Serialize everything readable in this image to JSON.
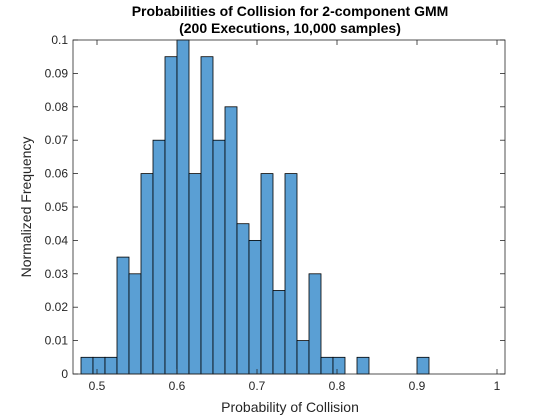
{
  "colors": {
    "bar_fill": "#5a9fd4",
    "bar_edge": "#000000",
    "axis": "#262626",
    "background": "#ffffff"
  },
  "chart_data": {
    "type": "bar",
    "subtype": "histogram",
    "title": [
      "Probabilities of Collision for 2-component GMM",
      "(200 Executions, 10,000 samples)"
    ],
    "xlabel": "Probability of Collision",
    "ylabel": "Normalized Frequency",
    "xlim": [
      0.47,
      1.01
    ],
    "ylim": [
      0,
      0.1
    ],
    "xticks": [
      0.5,
      0.6,
      0.7,
      0.8,
      0.9,
      1
    ],
    "xtick_labels": [
      "0.5",
      "0.6",
      "0.7",
      "0.8",
      "0.9",
      "1"
    ],
    "yticks": [
      0,
      0.01,
      0.02,
      0.03,
      0.04,
      0.05,
      0.06,
      0.07,
      0.08,
      0.09,
      0.1
    ],
    "ytick_labels": [
      "0",
      "0.01",
      "0.02",
      "0.03",
      "0.04",
      "0.05",
      "0.06",
      "0.07",
      "0.08",
      "0.09",
      "0.1"
    ],
    "grid": false,
    "box": true,
    "bin_width": 0.015,
    "bins": [
      {
        "x0": 0.48,
        "value": 0.005
      },
      {
        "x0": 0.495,
        "value": 0.005
      },
      {
        "x0": 0.51,
        "value": 0.005
      },
      {
        "x0": 0.525,
        "value": 0.035
      },
      {
        "x0": 0.54,
        "value": 0.03
      },
      {
        "x0": 0.555,
        "value": 0.06
      },
      {
        "x0": 0.57,
        "value": 0.07
      },
      {
        "x0": 0.585,
        "value": 0.095
      },
      {
        "x0": 0.6,
        "value": 0.1
      },
      {
        "x0": 0.615,
        "value": 0.06
      },
      {
        "x0": 0.63,
        "value": 0.095
      },
      {
        "x0": 0.645,
        "value": 0.07
      },
      {
        "x0": 0.66,
        "value": 0.08
      },
      {
        "x0": 0.675,
        "value": 0.045
      },
      {
        "x0": 0.69,
        "value": 0.04
      },
      {
        "x0": 0.705,
        "value": 0.06
      },
      {
        "x0": 0.72,
        "value": 0.025
      },
      {
        "x0": 0.735,
        "value": 0.06
      },
      {
        "x0": 0.75,
        "value": 0.01
      },
      {
        "x0": 0.765,
        "value": 0.03
      },
      {
        "x0": 0.78,
        "value": 0.005
      },
      {
        "x0": 0.795,
        "value": 0.005
      },
      {
        "x0": 0.825,
        "value": 0.005
      },
      {
        "x0": 0.9,
        "value": 0.005
      }
    ]
  }
}
